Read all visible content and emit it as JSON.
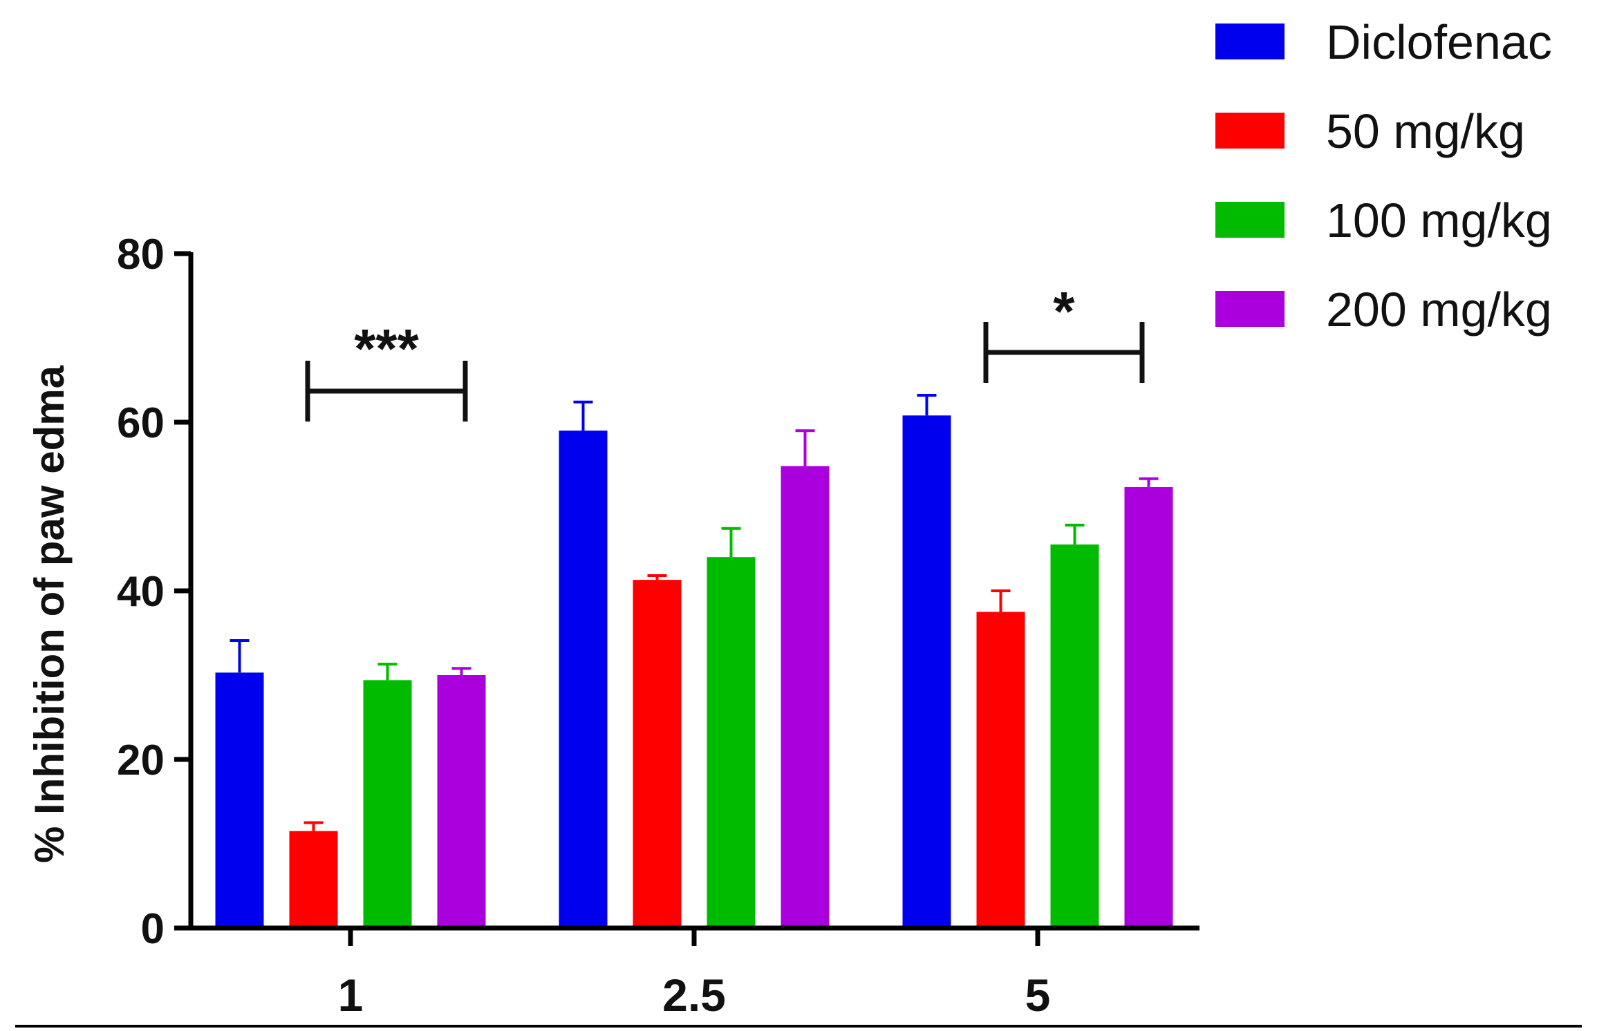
{
  "chart_data": {
    "type": "bar",
    "title": "",
    "xlabel": "",
    "ylabel": "% Inhibition of paw edma",
    "ylim": [
      0,
      80
    ],
    "yticks": [
      0,
      20,
      40,
      60,
      80
    ],
    "categories": [
      "1",
      "2.5",
      "5"
    ],
    "series": [
      {
        "name": "Diclofenac",
        "color": "#0000ee",
        "values": [
          30.3,
          59.0,
          60.8
        ],
        "errors": [
          3.8,
          3.4,
          2.4
        ]
      },
      {
        "name": "50 mg/kg",
        "color": "#ff0000",
        "values": [
          11.5,
          41.3,
          37.5
        ],
        "errors": [
          1.0,
          0.5,
          2.5
        ]
      },
      {
        "name": "100 mg/kg",
        "color": "#00bb00",
        "values": [
          29.4,
          44.0,
          45.5
        ],
        "errors": [
          1.9,
          3.4,
          2.3
        ]
      },
      {
        "name": "200 mg/kg",
        "color": "#aa00dd",
        "values": [
          30.0,
          54.8,
          52.3
        ],
        "errors": [
          0.8,
          4.2,
          1.0
        ]
      }
    ],
    "significance": [
      {
        "category": "1",
        "label": "***"
      },
      {
        "category": "5",
        "label": "*"
      }
    ],
    "legend_position": "top-right",
    "grid": false
  }
}
